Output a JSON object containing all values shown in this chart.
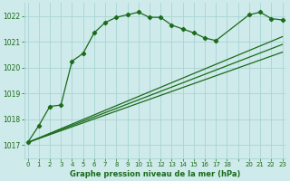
{
  "bg_color": "#ceeaea",
  "grid_color": "#aad4d4",
  "line_color": "#1a6b1a",
  "marker_color": "#1a6b1a",
  "title": "Graphe pression niveau de la mer (hPa)",
  "title_color": "#1a6b1a",
  "ylim": [
    1016.5,
    1022.5
  ],
  "xlim": [
    -0.3,
    23.3
  ],
  "yticks": [
    1017,
    1018,
    1019,
    1020,
    1021,
    1022
  ],
  "xtick_labels": [
    "0",
    "1",
    "2",
    "3",
    "4",
    "5",
    "6",
    "7",
    "8",
    "9",
    "10",
    "11",
    "12",
    "13",
    "14",
    "15",
    "16",
    "17",
    "18",
    "",
    "20",
    "21",
    "22",
    "23"
  ],
  "curve1_x": [
    0,
    1,
    2,
    3,
    4,
    5,
    6,
    7,
    8,
    9,
    10,
    11,
    12,
    13,
    14,
    15,
    16,
    17,
    20,
    21,
    22,
    23
  ],
  "curve1_y": [
    1017.1,
    1017.75,
    1018.5,
    1018.55,
    1020.25,
    1020.55,
    1021.35,
    1021.75,
    1021.95,
    1022.05,
    1022.15,
    1021.95,
    1021.95,
    1021.65,
    1021.5,
    1021.35,
    1021.15,
    1021.05,
    1022.05,
    1022.15,
    1021.9,
    1021.85
  ],
  "curve2_x": [
    0,
    23
  ],
  "curve2_y": [
    1017.1,
    1021.2
  ],
  "curve3_x": [
    0,
    23
  ],
  "curve3_y": [
    1017.1,
    1020.9
  ],
  "curve4_x": [
    0,
    23
  ],
  "curve4_y": [
    1017.1,
    1020.6
  ]
}
